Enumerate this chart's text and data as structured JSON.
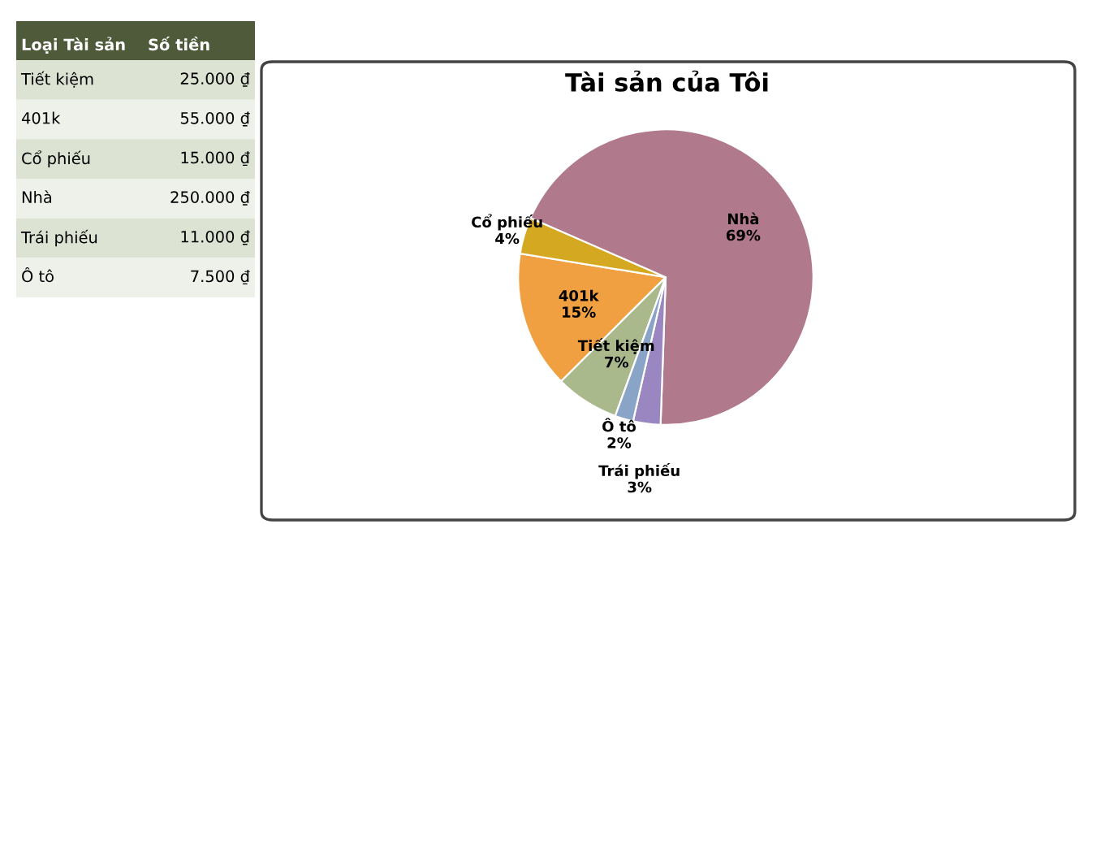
{
  "chart_data": {
    "type": "pie",
    "title": "Tài sản của Tôi",
    "categories": [
      "Tiết kiệm",
      "401k",
      "Cổ phiếu",
      "Nhà",
      "Trái phiếu",
      "Ô tô"
    ],
    "values": [
      7,
      15,
      4,
      69,
      3,
      2
    ],
    "value_labels": [
      "7%",
      "15%",
      "4%",
      "69%",
      "3%",
      "2%"
    ],
    "colors": [
      "#a9b98c",
      "#f0a040",
      "#d4a820",
      "#b07a8c",
      "#9a86c0",
      "#8aa4c8"
    ],
    "legend": false,
    "annotations": [
      "Loại Tài sản",
      "Số tiền",
      "25.000 ₫",
      "55.000 ₫",
      "15.000 ₫",
      "250.000 ₫",
      "11.000 ₫",
      "7.500 ₫"
    ]
  }
}
